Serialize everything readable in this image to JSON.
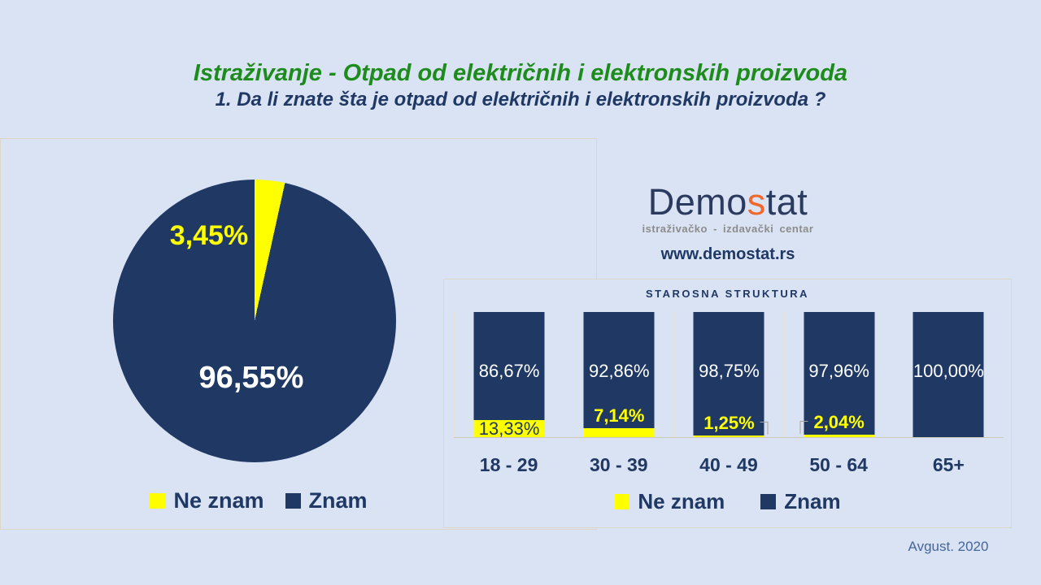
{
  "header": {
    "title": "Istraživanje - Otpad od električnih i elektronskih proizvoda",
    "subtitle": "1. Da li znate šta je otpad od električnih i elektronskih proizvoda ?"
  },
  "logo": {
    "prefix": "Demo",
    "accent": "s",
    "suffix": "tat",
    "tagline": "istraživačko - izdavački centar",
    "url": "www.demostat.rs"
  },
  "footer": {
    "date": "Avgust. 2020"
  },
  "colors": {
    "bg": "#dae3f3",
    "navy": "#1f3864",
    "yellow": "#ffff00",
    "green": "#1d8c1d",
    "logo_navy": "#2b3a5f",
    "logo_orange": "#f1672c",
    "tagline_gray": "#8c8c8c",
    "date_blue": "#44679b",
    "panel_border": "#ddd7c9",
    "grid": "#e9e3d7",
    "baseline": "#cfc9ba",
    "callout": "#a9a49a"
  },
  "chart_data": [
    {
      "type": "pie",
      "labels": [
        "Ne znam",
        "Znam"
      ],
      "values": [
        3.45,
        96.55
      ],
      "value_labels": [
        "3,45%",
        "96,55%"
      ],
      "colors": [
        "#ffff00",
        "#1f3864"
      ],
      "start_angle_deg": 0,
      "legend_position": "bottom"
    },
    {
      "type": "bar",
      "stacked": true,
      "title": "STAROSNA STRUKTURA",
      "categories": [
        "18 - 29",
        "30 - 39",
        "40 - 49",
        "50 - 64",
        "65+"
      ],
      "series": [
        {
          "name": "Ne znam",
          "color": "#ffff00",
          "values": [
            13.33,
            7.14,
            1.25,
            2.04,
            0
          ],
          "value_labels": [
            "13,33%",
            "7,14%",
            "1,25%",
            "2,04%",
            ""
          ]
        },
        {
          "name": "Znam",
          "color": "#1f3864",
          "values": [
            86.67,
            92.86,
            98.75,
            97.96,
            100
          ],
          "value_labels": [
            "86,67%",
            "92,86%",
            "98,75%",
            "97,96%",
            "100,00%"
          ]
        }
      ],
      "ylim": [
        0,
        100
      ],
      "grid": "vertical-category-separators",
      "legend_position": "bottom",
      "label_styles": [
        "on-segment",
        "above",
        "callout-right",
        "callout-left",
        "none"
      ]
    }
  ]
}
